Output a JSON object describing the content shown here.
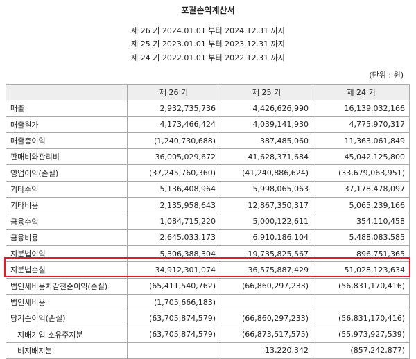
{
  "title": "포괄손익계산서",
  "periods": [
    "제 26 기  2024.01.01 부터  2024.12.31 까지",
    "제 25 기  2023.01.01 부터  2023.12.31 까지",
    "제 24 기  2022.01.01 부터  2022.12.31 까지"
  ],
  "unit": "(단위 : 원)",
  "columns": [
    "",
    "제 26 기",
    "제 25 기",
    "제 24 기"
  ],
  "rows": [
    {
      "label": "매출",
      "values": [
        "2,932,735,736",
        "4,426,626,990",
        "16,139,032,166"
      ]
    },
    {
      "label": "매출원가",
      "values": [
        "4,173,466,424",
        "4,039,141,930",
        "4,775,970,317"
      ]
    },
    {
      "label": "매출총이익",
      "values": [
        "(1,240,730,688)",
        "387,485,060",
        "11,363,061,849"
      ]
    },
    {
      "label": "판매비와관리비",
      "values": [
        "36,005,029,672",
        "41,628,371,684",
        "45,042,125,800"
      ]
    },
    {
      "label": "영업이익(손실)",
      "values": [
        "(37,245,760,360)",
        "(41,240,886,624)",
        "(33,679,063,951)"
      ]
    },
    {
      "label": "기타수익",
      "values": [
        "5,136,408,964",
        "5,998,065,063",
        "37,178,478,097"
      ]
    },
    {
      "label": "기타비용",
      "values": [
        "2,135,958,643",
        "12,867,350,317",
        "5,065,239,166"
      ]
    },
    {
      "label": "금융수익",
      "values": [
        "1,084,715,220",
        "5,000,122,611",
        "354,110,458"
      ]
    },
    {
      "label": "금융비용",
      "values": [
        "2,645,033,173",
        "6,910,186,104",
        "5,488,083,585"
      ]
    },
    {
      "label": "지분법이익",
      "values": [
        "5,306,388,304",
        "19,735,825,567",
        "896,751,365"
      ]
    },
    {
      "label": "지분법손실",
      "values": [
        "34,912,301,074",
        "36,575,887,429",
        "51,028,123,634"
      ]
    },
    {
      "label": "법인세비용차감전순이익(손실)",
      "values": [
        "(65,411,540,762)",
        "(66,860,297,233)",
        "(56,831,170,416)"
      ]
    },
    {
      "label": "법인세비용",
      "values": [
        "(1,705,666,183)",
        "",
        ""
      ]
    },
    {
      "label": "당기순이익(손실)",
      "values": [
        "(63,705,874,579)",
        "(66,860,297,233)",
        "(56,831,170,416)"
      ]
    },
    {
      "label": "지배기업 소유주지분",
      "values": [
        "(63,705,874,579)",
        "(66,873,517,575)",
        "(55,973,927,539)"
      ]
    },
    {
      "label": "비지배지분",
      "values": [
        "",
        "13,220,342",
        "(857,242,877)"
      ]
    }
  ],
  "highlight_color": "#e01c2c"
}
